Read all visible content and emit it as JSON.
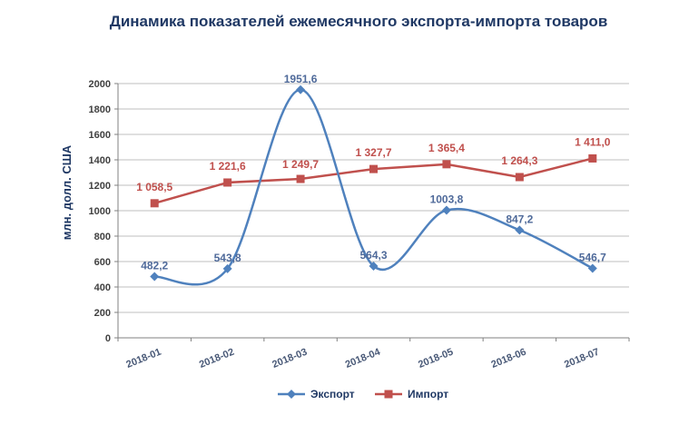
{
  "chart_data": {
    "type": "line",
    "title": "Динамика показателей ежемесячного экспорта-импорта товаров",
    "ylabel": "млн. долл. США",
    "xlabel": "",
    "ylim": [
      0,
      2000
    ],
    "yticks": [
      0,
      200,
      400,
      600,
      800,
      1000,
      1200,
      1400,
      1600,
      1800,
      2000
    ],
    "categories": [
      "2018-01",
      "2018-02",
      "2018-03",
      "2018-04",
      "2018-05",
      "2018-06",
      "2018-07"
    ],
    "grid": true,
    "legend_position": "bottom",
    "series": [
      {
        "name": "Экспорт",
        "color": "#4f81bd",
        "label_color": "#4f6a9a",
        "marker": "diamond",
        "smooth": true,
        "values": [
          482.2,
          543.8,
          1951.6,
          564.3,
          1003.8,
          847.2,
          546.7
        ],
        "labels": [
          "482,2",
          "543,8",
          "1951,6",
          "564,3",
          "1003,8",
          "847,2",
          "546,7"
        ]
      },
      {
        "name": "Импорт",
        "color": "#c0504d",
        "label_color": "#c0504d",
        "marker": "square",
        "smooth": false,
        "values": [
          1058.5,
          1221.6,
          1249.7,
          1327.7,
          1365.4,
          1264.3,
          1411.0
        ],
        "labels": [
          "1 058,5",
          "1 221,6",
          "1 249,7",
          "1 327,7",
          "1 365,4",
          "1 264,3",
          "1 411,0"
        ]
      }
    ]
  }
}
